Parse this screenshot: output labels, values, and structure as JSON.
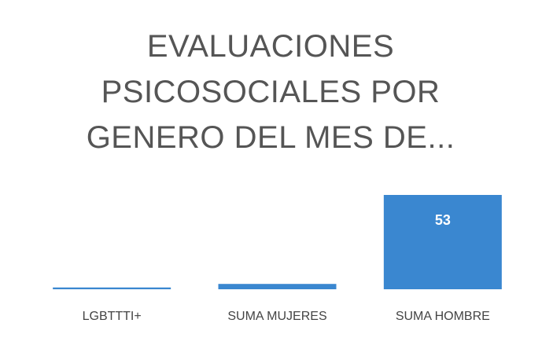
{
  "chart_data": {
    "type": "bar",
    "title": "EVALUACIONES PSICOSOCIALES POR GENERO DEL MES DE...",
    "categories": [
      "LGBTTTI+",
      "SUMA MUJERES",
      "SUMA HOMBRE"
    ],
    "values": [
      1,
      3,
      53
    ],
    "color": "#3a87d0"
  }
}
